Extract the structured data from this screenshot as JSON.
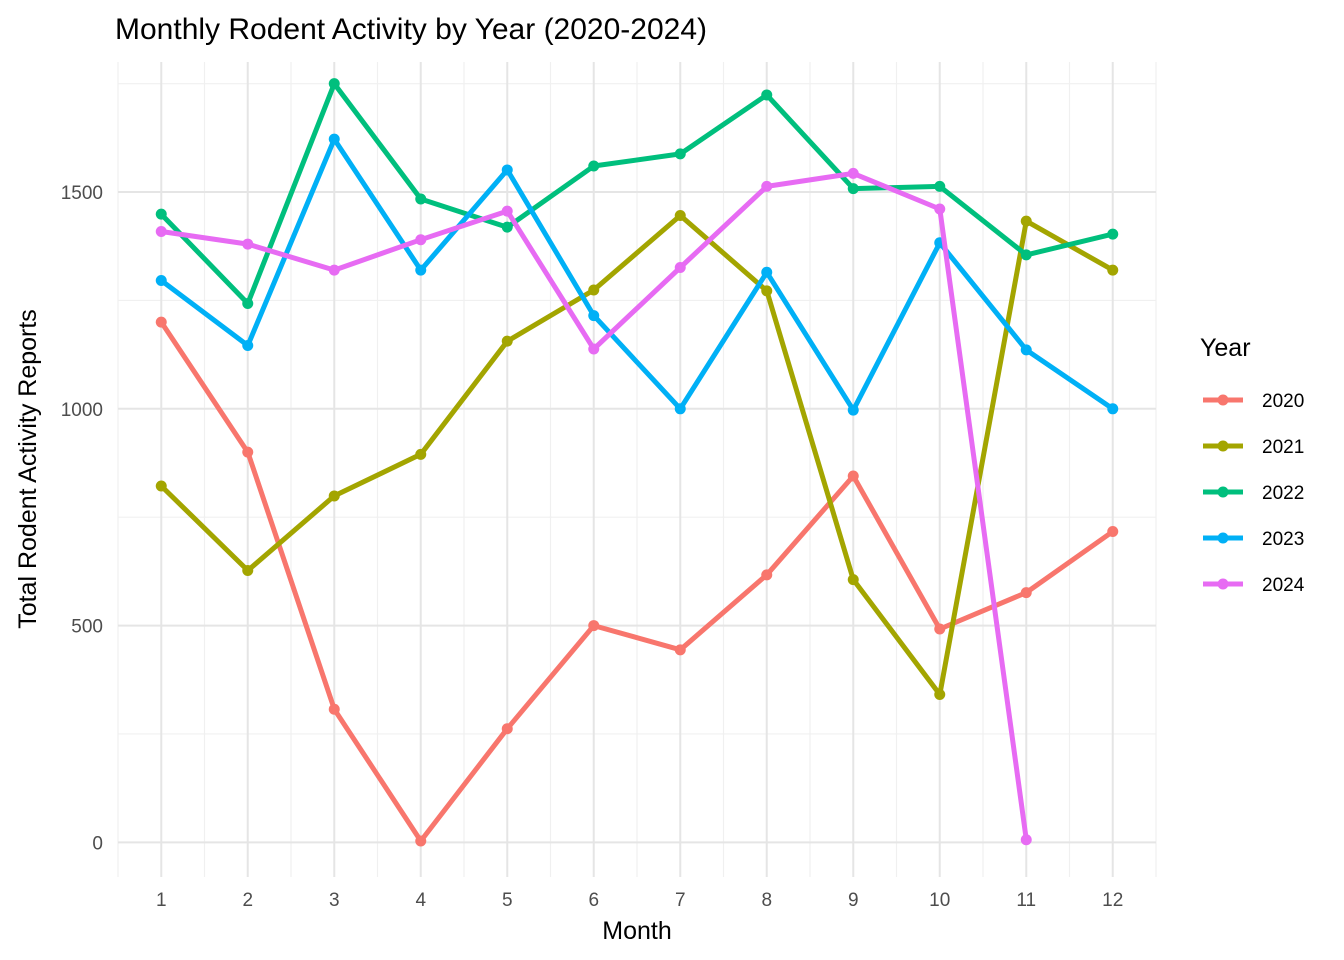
{
  "chart_data": {
    "type": "line",
    "title": "Monthly Rodent Activity by Year (2020-2024)",
    "xlabel": "Month",
    "ylabel": "Total Rodent Activity Reports",
    "x": [
      1,
      2,
      3,
      4,
      5,
      6,
      7,
      8,
      9,
      10,
      11,
      12
    ],
    "xlim": [
      0.5,
      12.5
    ],
    "ylim": [
      -80,
      1800
    ],
    "yticks": [
      0,
      500,
      1000,
      1500
    ],
    "grid": true,
    "legend": {
      "title": "Year",
      "position": "right"
    },
    "series": [
      {
        "name": "2020",
        "color": "#F8766D",
        "values": [
          1200,
          900,
          307,
          3,
          262,
          500,
          444,
          617,
          845,
          492,
          576,
          717
        ]
      },
      {
        "name": "2021",
        "color": "#A3A500",
        "values": [
          822,
          627,
          799,
          895,
          1156,
          1274,
          1446,
          1272,
          606,
          341,
          1433,
          1320
        ]
      },
      {
        "name": "2022",
        "color": "#00BF7D",
        "values": [
          1449,
          1243,
          1750,
          1484,
          1419,
          1560,
          1588,
          1724,
          1508,
          1513,
          1355,
          1403
        ]
      },
      {
        "name": "2023",
        "color": "#00B0F6",
        "values": [
          1296,
          1146,
          1622,
          1320,
          1551,
          1215,
          1000,
          1315,
          997,
          1383,
          1136,
          1000
        ]
      },
      {
        "name": "2024",
        "color": "#E76BF3",
        "values": [
          1409,
          1380,
          1320,
          1390,
          1456,
          1138,
          1326,
          1513,
          1543,
          1461,
          6,
          null
        ]
      }
    ]
  }
}
